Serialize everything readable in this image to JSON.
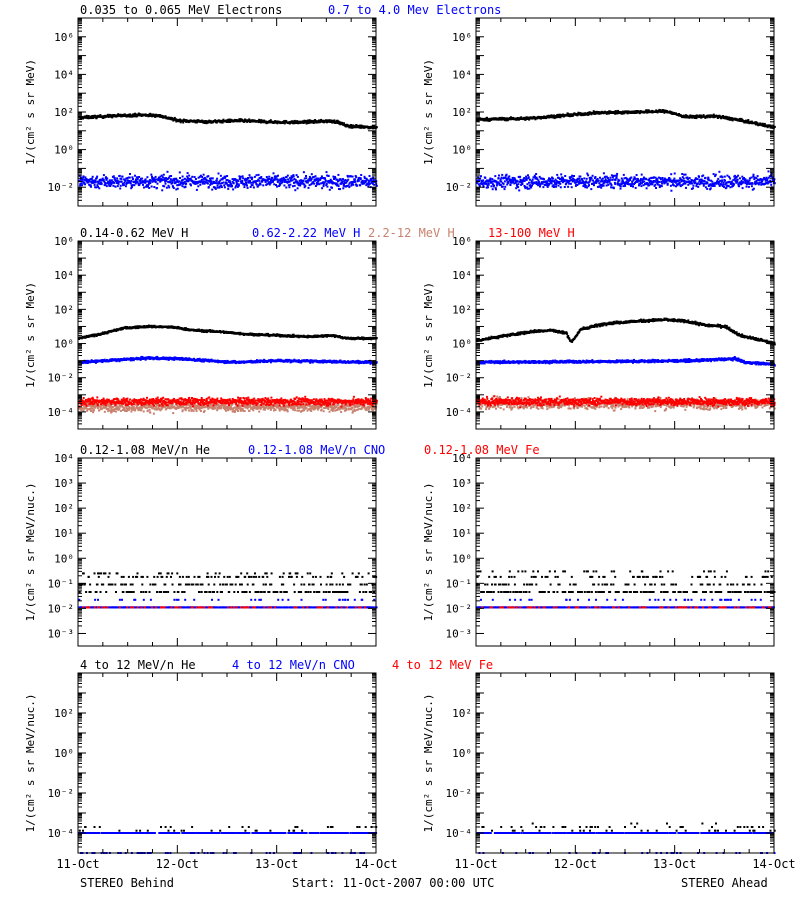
{
  "colors": {
    "black": "#000000",
    "blue": "#0000ff",
    "tan": "#c8826e",
    "red": "#ff0000",
    "frame": "#000000"
  },
  "x_axis": {
    "ticks": [
      "11-Oct",
      "12-Oct",
      "13-Oct",
      "14-Oct"
    ],
    "range_days": [
      0,
      3
    ]
  },
  "footer": {
    "left": "STEREO Behind",
    "center": "Start: 11-Oct-2007 00:00 UTC",
    "right": "STEREO Ahead"
  },
  "chart_data": [
    {
      "type": "scatter",
      "row": 1,
      "legend": [
        {
          "text": "0.035 to 0.065 MeV Electrons",
          "color": "black"
        },
        {
          "text": "0.7 to 4.0 Mev Electrons",
          "color": "blue"
        }
      ],
      "ylabel": "1/(cm² s sr MeV)",
      "yscale": "log",
      "ylim_log10": [
        -3,
        7
      ],
      "ytick_exponents": [
        -2,
        0,
        2,
        4,
        6
      ],
      "panels": [
        {
          "side": "STEREO Behind",
          "series": [
            {
              "color": "black",
              "profile": [
                [
                  0,
                  50
                ],
                [
                  0.3,
                  60
                ],
                [
                  0.6,
                  70
                ],
                [
                  0.8,
                  65
                ],
                [
                  1.0,
                  35
                ],
                [
                  1.3,
                  30
                ],
                [
                  1.6,
                  35
                ],
                [
                  1.9,
                  30
                ],
                [
                  2.2,
                  28
                ],
                [
                  2.5,
                  33
                ],
                [
                  2.6,
                  30
                ],
                [
                  2.7,
                  18
                ],
                [
                  3.0,
                  15
                ]
              ],
              "scatter_dex": 0.05
            },
            {
              "color": "blue",
              "profile": [
                [
                  0,
                  0.02
                ],
                [
                  3.0,
                  0.02
                ]
              ],
              "scatter_dex": 0.25
            }
          ]
        },
        {
          "side": "STEREO Ahead",
          "series": [
            {
              "color": "black",
              "profile": [
                [
                  0,
                  40
                ],
                [
                  0.5,
                  45
                ],
                [
                  0.8,
                  60
                ],
                [
                  1.2,
                  90
                ],
                [
                  1.6,
                  100
                ],
                [
                  1.9,
                  110
                ],
                [
                  2.1,
                  55
                ],
                [
                  2.4,
                  60
                ],
                [
                  2.6,
                  40
                ],
                [
                  2.8,
                  25
                ],
                [
                  3.0,
                  15
                ]
              ],
              "scatter_dex": 0.05
            },
            {
              "color": "blue",
              "profile": [
                [
                  0,
                  0.02
                ],
                [
                  3.0,
                  0.02
                ]
              ],
              "scatter_dex": 0.25
            }
          ]
        }
      ]
    },
    {
      "type": "scatter",
      "row": 2,
      "legend": [
        {
          "text": "0.14-0.62 MeV H",
          "color": "black"
        },
        {
          "text": "0.62-2.22 MeV H",
          "color": "blue"
        },
        {
          "text": "2.2-12 MeV H",
          "color": "tan"
        },
        {
          "text": "13-100 MeV H",
          "color": "red"
        }
      ],
      "ylabel": "1/(cm² s sr MeV)",
      "yscale": "log",
      "ylim_log10": [
        -5,
        6
      ],
      "ytick_exponents": [
        -4,
        -2,
        0,
        2,
        4,
        6
      ],
      "panels": [
        {
          "side": "STEREO Behind",
          "series": [
            {
              "color": "black",
              "profile": [
                [
                  0,
                  2
                ],
                [
                  0.25,
                  4
                ],
                [
                  0.45,
                  8
                ],
                [
                  0.7,
                  10
                ],
                [
                  0.95,
                  9
                ],
                [
                  1.15,
                  6
                ],
                [
                  1.4,
                  5
                ],
                [
                  1.7,
                  3.5
                ],
                [
                  2.0,
                  3
                ],
                [
                  2.3,
                  2.5
                ],
                [
                  2.55,
                  3
                ],
                [
                  2.7,
                  2
                ],
                [
                  3.0,
                  2
                ]
              ],
              "scatter_dex": 0.04
            },
            {
              "color": "blue",
              "profile": [
                [
                  0,
                  0.08
                ],
                [
                  0.7,
                  0.14
                ],
                [
                  1.0,
                  0.13
                ],
                [
                  1.3,
                  0.1
                ],
                [
                  1.6,
                  0.08
                ],
                [
                  2.0,
                  0.1
                ],
                [
                  2.4,
                  0.09
                ],
                [
                  3.0,
                  0.08
                ]
              ],
              "scatter_dex": 0.05
            },
            {
              "color": "tan",
              "profile": [
                [
                  0,
                  0.0002
                ],
                [
                  3.0,
                  0.0002
                ]
              ],
              "scatter_dex": 0.2
            },
            {
              "color": "red",
              "profile": [
                [
                  0,
                  0.0004
                ],
                [
                  3.0,
                  0.0004
                ]
              ],
              "scatter_dex": 0.15
            }
          ]
        },
        {
          "side": "STEREO Ahead",
          "series": [
            {
              "color": "black",
              "profile": [
                [
                  0,
                  1.5
                ],
                [
                  0.3,
                  3
                ],
                [
                  0.55,
                  5
                ],
                [
                  0.75,
                  6
                ],
                [
                  0.9,
                  4
                ],
                [
                  0.95,
                  1.2
                ],
                [
                  1.05,
                  7
                ],
                [
                  1.3,
                  15
                ],
                [
                  1.6,
                  20
                ],
                [
                  1.9,
                  25
                ],
                [
                  2.1,
                  20
                ],
                [
                  2.3,
                  12
                ],
                [
                  2.5,
                  10
                ],
                [
                  2.65,
                  3
                ],
                [
                  3.0,
                  1
                ]
              ],
              "scatter_dex": 0.05
            },
            {
              "color": "blue",
              "profile": [
                [
                  0,
                  0.08
                ],
                [
                  1.5,
                  0.09
                ],
                [
                  2.2,
                  0.1
                ],
                [
                  2.6,
                  0.13
                ],
                [
                  2.7,
                  0.08
                ],
                [
                  3.0,
                  0.06
                ]
              ],
              "scatter_dex": 0.05
            },
            {
              "color": "tan",
              "profile": [
                [
                  0,
                  0.0003
                ],
                [
                  3.0,
                  0.0003
                ]
              ],
              "scatter_dex": 0.22
            },
            {
              "color": "red",
              "profile": [
                [
                  0,
                  0.0004
                ],
                [
                  3.0,
                  0.0004
                ]
              ],
              "scatter_dex": 0.15
            }
          ]
        }
      ]
    },
    {
      "type": "scatter",
      "row": 3,
      "legend": [
        {
          "text": "0.12-1.08 MeV/n He",
          "color": "black"
        },
        {
          "text": "0.12-1.08 MeV/n CNO",
          "color": "blue"
        },
        {
          "text": "0.12-1.08 MeV Fe",
          "color": "red"
        }
      ],
      "ylabel": "1/(cm² s sr MeV/nuc.)",
      "yscale": "log",
      "ylim_log10": [
        -3.5,
        4
      ],
      "ytick_exponents": [
        -3,
        -2,
        -1,
        0,
        1,
        2,
        3,
        4
      ],
      "panels": [
        {
          "side": "STEREO Behind",
          "series": [
            {
              "color": "black",
              "levels": [
                0.045,
                0.09,
                0.18,
                0.25
              ],
              "weights": [
                0.45,
                0.25,
                0.2,
                0.1
              ],
              "gap": 0.35
            },
            {
              "color": "blue",
              "levels": [
                0.011,
                0.022
              ],
              "weights": [
                0.92,
                0.08
              ],
              "gap": 0.15
            },
            {
              "color": "red",
              "levels": [
                0.011
              ],
              "weights": [
                1
              ],
              "gap": 0.85
            }
          ]
        },
        {
          "side": "STEREO Ahead",
          "series": [
            {
              "color": "black",
              "levels": [
                0.045,
                0.09,
                0.18,
                0.3
              ],
              "weights": [
                0.45,
                0.25,
                0.2,
                0.1
              ],
              "gap": 0.35
            },
            {
              "color": "blue",
              "levels": [
                0.011,
                0.022
              ],
              "weights": [
                0.92,
                0.08
              ],
              "gap": 0.15
            },
            {
              "color": "red",
              "levels": [
                0.011
              ],
              "weights": [
                1
              ],
              "gap": 0.85
            }
          ]
        }
      ]
    },
    {
      "type": "scatter",
      "row": 4,
      "legend": [
        {
          "text": "4 to 12 MeV/n He",
          "color": "black"
        },
        {
          "text": "4 to 12 MeV/n CNO",
          "color": "blue"
        },
        {
          "text": "4 to 12 MeV Fe",
          "color": "red"
        }
      ],
      "ylabel": "1/(cm² s sr MeV/nuc.)",
      "yscale": "log",
      "ylim_log10": [
        -5,
        4
      ],
      "ytick_exponents": [
        -4,
        -2,
        0,
        2
      ],
      "panels": [
        {
          "side": "STEREO Behind",
          "series": [
            {
              "color": "blue",
              "levels": [
                0.0001
              ],
              "weights": [
                1
              ],
              "gap": 0.3
            },
            {
              "color": "black",
              "levels": [
                0.0002,
                0.00013
              ],
              "weights": [
                0.5,
                0.5
              ],
              "gap": 0.9
            },
            {
              "color": "blue",
              "levels": [
                1e-05
              ],
              "weights": [
                1
              ],
              "gap": 0.9
            }
          ]
        },
        {
          "side": "STEREO Ahead",
          "series": [
            {
              "color": "blue",
              "levels": [
                0.0001
              ],
              "weights": [
                1
              ],
              "gap": 0.3
            },
            {
              "color": "black",
              "levels": [
                0.0002,
                0.00013,
                0.0003
              ],
              "weights": [
                0.45,
                0.45,
                0.1
              ],
              "gap": 0.9
            },
            {
              "color": "blue",
              "levels": [
                1e-05
              ],
              "weights": [
                1
              ],
              "gap": 0.92
            }
          ]
        }
      ]
    }
  ]
}
